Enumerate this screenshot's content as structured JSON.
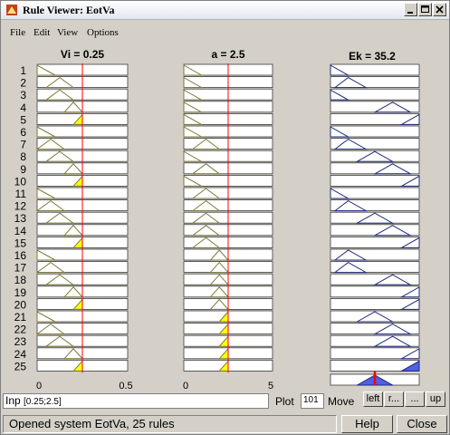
{
  "window": {
    "title": "Rule Viewer: EotVa"
  },
  "menu": [
    "File",
    "Edit",
    "View",
    "Options"
  ],
  "columns": [
    {
      "title": "Vi = 0.25",
      "tick_min": "0",
      "tick_max": "0.5",
      "input_value": 0.25,
      "range": [
        0,
        0.5
      ]
    },
    {
      "title": "a = 2.5",
      "tick_min": "0",
      "tick_max": "5",
      "input_value": 2.5,
      "range": [
        0,
        5
      ]
    },
    {
      "title": "Ek = 35.2",
      "output_value": 35.2
    }
  ],
  "rule_numbers": [
    "1",
    "2",
    "3",
    "4",
    "5",
    "6",
    "7",
    "8",
    "9",
    "10",
    "11",
    "12",
    "13",
    "14",
    "15",
    "16",
    "17",
    "18",
    "19",
    "20",
    "21",
    "22",
    "23",
    "24",
    "25"
  ],
  "rules": [
    {
      "in1": "low",
      "in2": "low",
      "out": "mf1"
    },
    {
      "in1": "mid",
      "in2": "low",
      "out": "mf2"
    },
    {
      "in1": "mid",
      "in2": "low",
      "out": "mf1"
    },
    {
      "in1": "high",
      "in2": "low",
      "out": "mf4"
    },
    {
      "in1": "vhigh",
      "in2": "low",
      "out": "mf5"
    },
    {
      "in1": "low",
      "in2": "low",
      "out": "mf1"
    },
    {
      "in1": "lmid",
      "in2": "mid",
      "out": "mf2"
    },
    {
      "in1": "mid",
      "in2": "low",
      "out": "mf3"
    },
    {
      "in1": "high",
      "in2": "mid",
      "out": "mf4"
    },
    {
      "in1": "vhigh",
      "in2": "low",
      "out": "mf5"
    },
    {
      "in1": "low",
      "in2": "mid",
      "out": "mf1"
    },
    {
      "in1": "lmid",
      "in2": "mid",
      "out": "mf2"
    },
    {
      "in1": "mid",
      "in2": "mid",
      "out": "mf3"
    },
    {
      "in1": "high",
      "in2": "mid",
      "out": "mf4"
    },
    {
      "in1": "vhigh",
      "in2": "mid",
      "out": "mf5"
    },
    {
      "in1": "low",
      "in2": "high",
      "out": "mf2"
    },
    {
      "in1": "lmid",
      "in2": "high",
      "out": "mf2"
    },
    {
      "in1": "mid",
      "in2": "high",
      "out": "mf4"
    },
    {
      "in1": "high",
      "in2": "high",
      "out": "mf5"
    },
    {
      "in1": "vhigh",
      "in2": "high",
      "out": "mf5"
    },
    {
      "in1": "low",
      "in2": "vhigh",
      "out": "mf3"
    },
    {
      "in1": "lmid",
      "in2": "vhigh",
      "out": "mf4"
    },
    {
      "in1": "mid",
      "in2": "vhigh",
      "out": "mf4"
    },
    {
      "in1": "high",
      "in2": "vhigh",
      "out": "mf5"
    },
    {
      "in1": "vhigh",
      "in2": "vhigh",
      "out": "mf5"
    }
  ],
  "membership_sets": {
    "low": [
      0,
      0,
      0.2
    ],
    "lmid": [
      0,
      0.15,
      0.3
    ],
    "mid": [
      0.1,
      0.25,
      0.4
    ],
    "high": [
      0.3,
      0.4,
      0.5
    ],
    "vhigh": [
      0.4,
      0.5,
      0.5
    ]
  },
  "output_sets": {
    "mf1": [
      0,
      0,
      0.2
    ],
    "mf2": [
      0.05,
      0.2,
      0.4
    ],
    "mf3": [
      0.3,
      0.5,
      0.7
    ],
    "mf4": [
      0.5,
      0.7,
      0.9
    ],
    "mf5": [
      0.8,
      1.0,
      1.0
    ]
  },
  "input_field": {
    "label": "Inp",
    "value": "[0.25;2.5]"
  },
  "plot_field": {
    "label": "Plot",
    "value": "101"
  },
  "move": {
    "label": "Move",
    "left": "left",
    "right": "r...",
    "down": "...",
    "up": "up"
  },
  "status": "Opened system EotVa, 25 rules",
  "buttons": {
    "help": "Help",
    "close": "Close"
  },
  "colors": {
    "fired": "#ffff00",
    "aggregate": "#4f5fe6",
    "mf_line": "#7c7a3c",
    "out_line": "#1e2a7a",
    "index_line": "#ff0000",
    "output_index": "#ff0000"
  }
}
